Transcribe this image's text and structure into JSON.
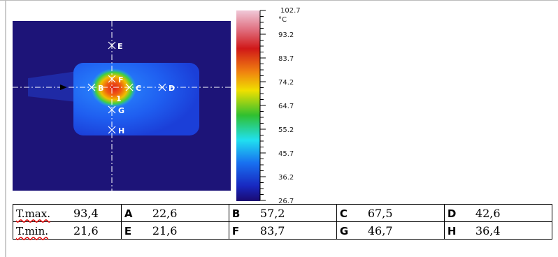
{
  "image": {
    "markers": [
      "E",
      "F",
      "B",
      "C",
      "D",
      "G",
      "H",
      "1"
    ]
  },
  "colorbar": {
    "unit": "°C",
    "labels": [
      "102.7",
      "93.2",
      "83.7",
      "74.2",
      "64.7",
      "55.2",
      "45.7",
      "36.2",
      "26.7"
    ]
  },
  "table": {
    "rows": [
      [
        "T.max.",
        "93,4",
        "A",
        "22,6",
        "B",
        "57,2",
        "C",
        "67,5",
        "D",
        "42,6"
      ],
      [
        "T.min.",
        "21,6",
        "E",
        "21,6",
        "F",
        "83,7",
        "G",
        "46,7",
        "H",
        "36,4"
      ]
    ]
  }
}
